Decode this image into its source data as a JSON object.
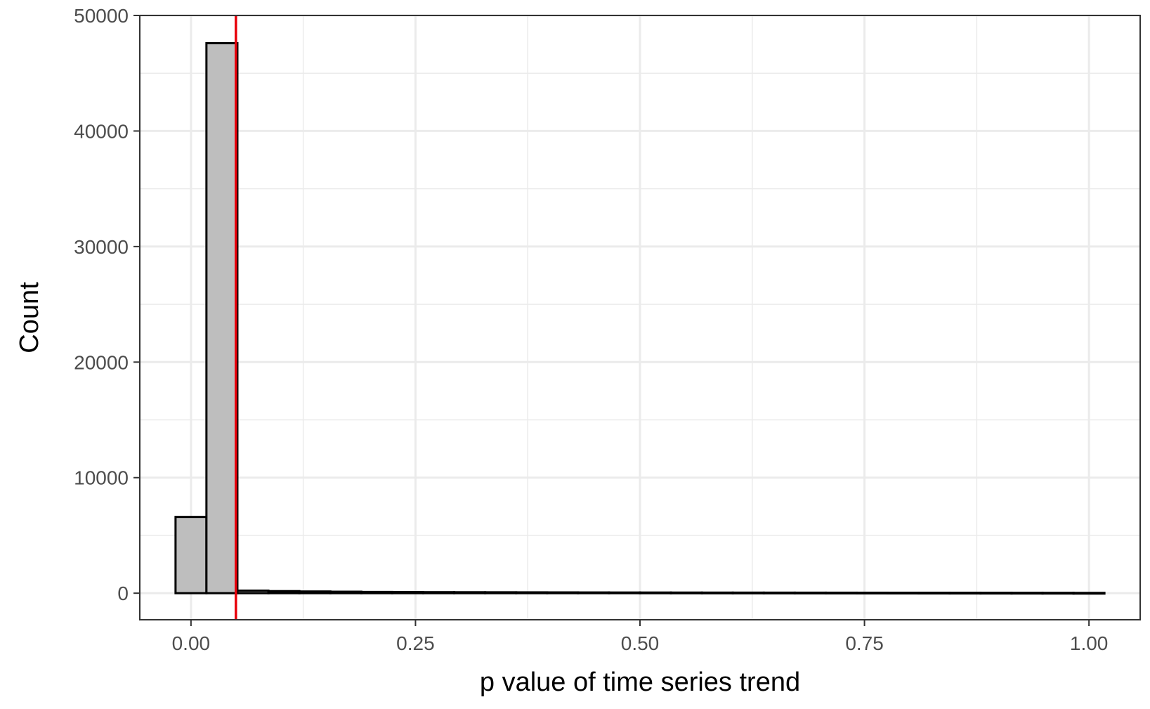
{
  "chart_data": {
    "type": "bar",
    "title": "",
    "xlabel": "p value of time series trend",
    "ylabel": "Count",
    "xlim": [
      -0.057,
      1.057
    ],
    "ylim": [
      -2300,
      50000
    ],
    "x_ticks": [
      0.0,
      0.25,
      0.5,
      0.75,
      1.0
    ],
    "x_tick_labels": [
      "0.00",
      "0.25",
      "0.50",
      "0.75",
      "1.00"
    ],
    "y_ticks": [
      0,
      10000,
      20000,
      30000,
      40000,
      50000
    ],
    "y_tick_labels": [
      "0",
      "10000",
      "20000",
      "30000",
      "40000",
      "50000"
    ],
    "bin_width": 0.0345,
    "bins": [
      {
        "x0": -0.0172,
        "x1": 0.0172,
        "count": 6600
      },
      {
        "x0": 0.0172,
        "x1": 0.0517,
        "count": 47600
      },
      {
        "x0": 0.0517,
        "x1": 0.0862,
        "count": 220
      },
      {
        "x0": 0.0862,
        "x1": 0.1207,
        "count": 180
      },
      {
        "x0": 0.1207,
        "x1": 0.1552,
        "count": 150
      },
      {
        "x0": 0.1552,
        "x1": 0.1897,
        "count": 130
      },
      {
        "x0": 0.1897,
        "x1": 0.2241,
        "count": 110
      },
      {
        "x0": 0.2241,
        "x1": 0.2586,
        "count": 100
      },
      {
        "x0": 0.2586,
        "x1": 0.2931,
        "count": 90
      },
      {
        "x0": 0.2931,
        "x1": 0.3276,
        "count": 85
      },
      {
        "x0": 0.3276,
        "x1": 0.3621,
        "count": 80
      },
      {
        "x0": 0.3621,
        "x1": 0.3966,
        "count": 75
      },
      {
        "x0": 0.3966,
        "x1": 0.431,
        "count": 70
      },
      {
        "x0": 0.431,
        "x1": 0.4655,
        "count": 65
      },
      {
        "x0": 0.4655,
        "x1": 0.5,
        "count": 60
      },
      {
        "x0": 0.5,
        "x1": 0.5345,
        "count": 58
      },
      {
        "x0": 0.5345,
        "x1": 0.569,
        "count": 55
      },
      {
        "x0": 0.569,
        "x1": 0.6034,
        "count": 52
      },
      {
        "x0": 0.6034,
        "x1": 0.6379,
        "count": 50
      },
      {
        "x0": 0.6379,
        "x1": 0.6724,
        "count": 48
      },
      {
        "x0": 0.6724,
        "x1": 0.7069,
        "count": 46
      },
      {
        "x0": 0.7069,
        "x1": 0.7414,
        "count": 44
      },
      {
        "x0": 0.7414,
        "x1": 0.7759,
        "count": 42
      },
      {
        "x0": 0.7759,
        "x1": 0.8103,
        "count": 40
      },
      {
        "x0": 0.8103,
        "x1": 0.8448,
        "count": 38
      },
      {
        "x0": 0.8448,
        "x1": 0.8793,
        "count": 36
      },
      {
        "x0": 0.8793,
        "x1": 0.9138,
        "count": 34
      },
      {
        "x0": 0.9138,
        "x1": 0.9483,
        "count": 32
      },
      {
        "x0": 0.9483,
        "x1": 0.9828,
        "count": 30
      },
      {
        "x0": 0.9828,
        "x1": 1.0172,
        "count": 25
      }
    ],
    "reference_line": {
      "x": 0.05,
      "color": "#e8000b"
    },
    "bar_fill": "#bebebe",
    "bar_stroke": "#000000",
    "grid": true,
    "grid_color": "#ebebeb",
    "panel_border_color": "#333333"
  }
}
